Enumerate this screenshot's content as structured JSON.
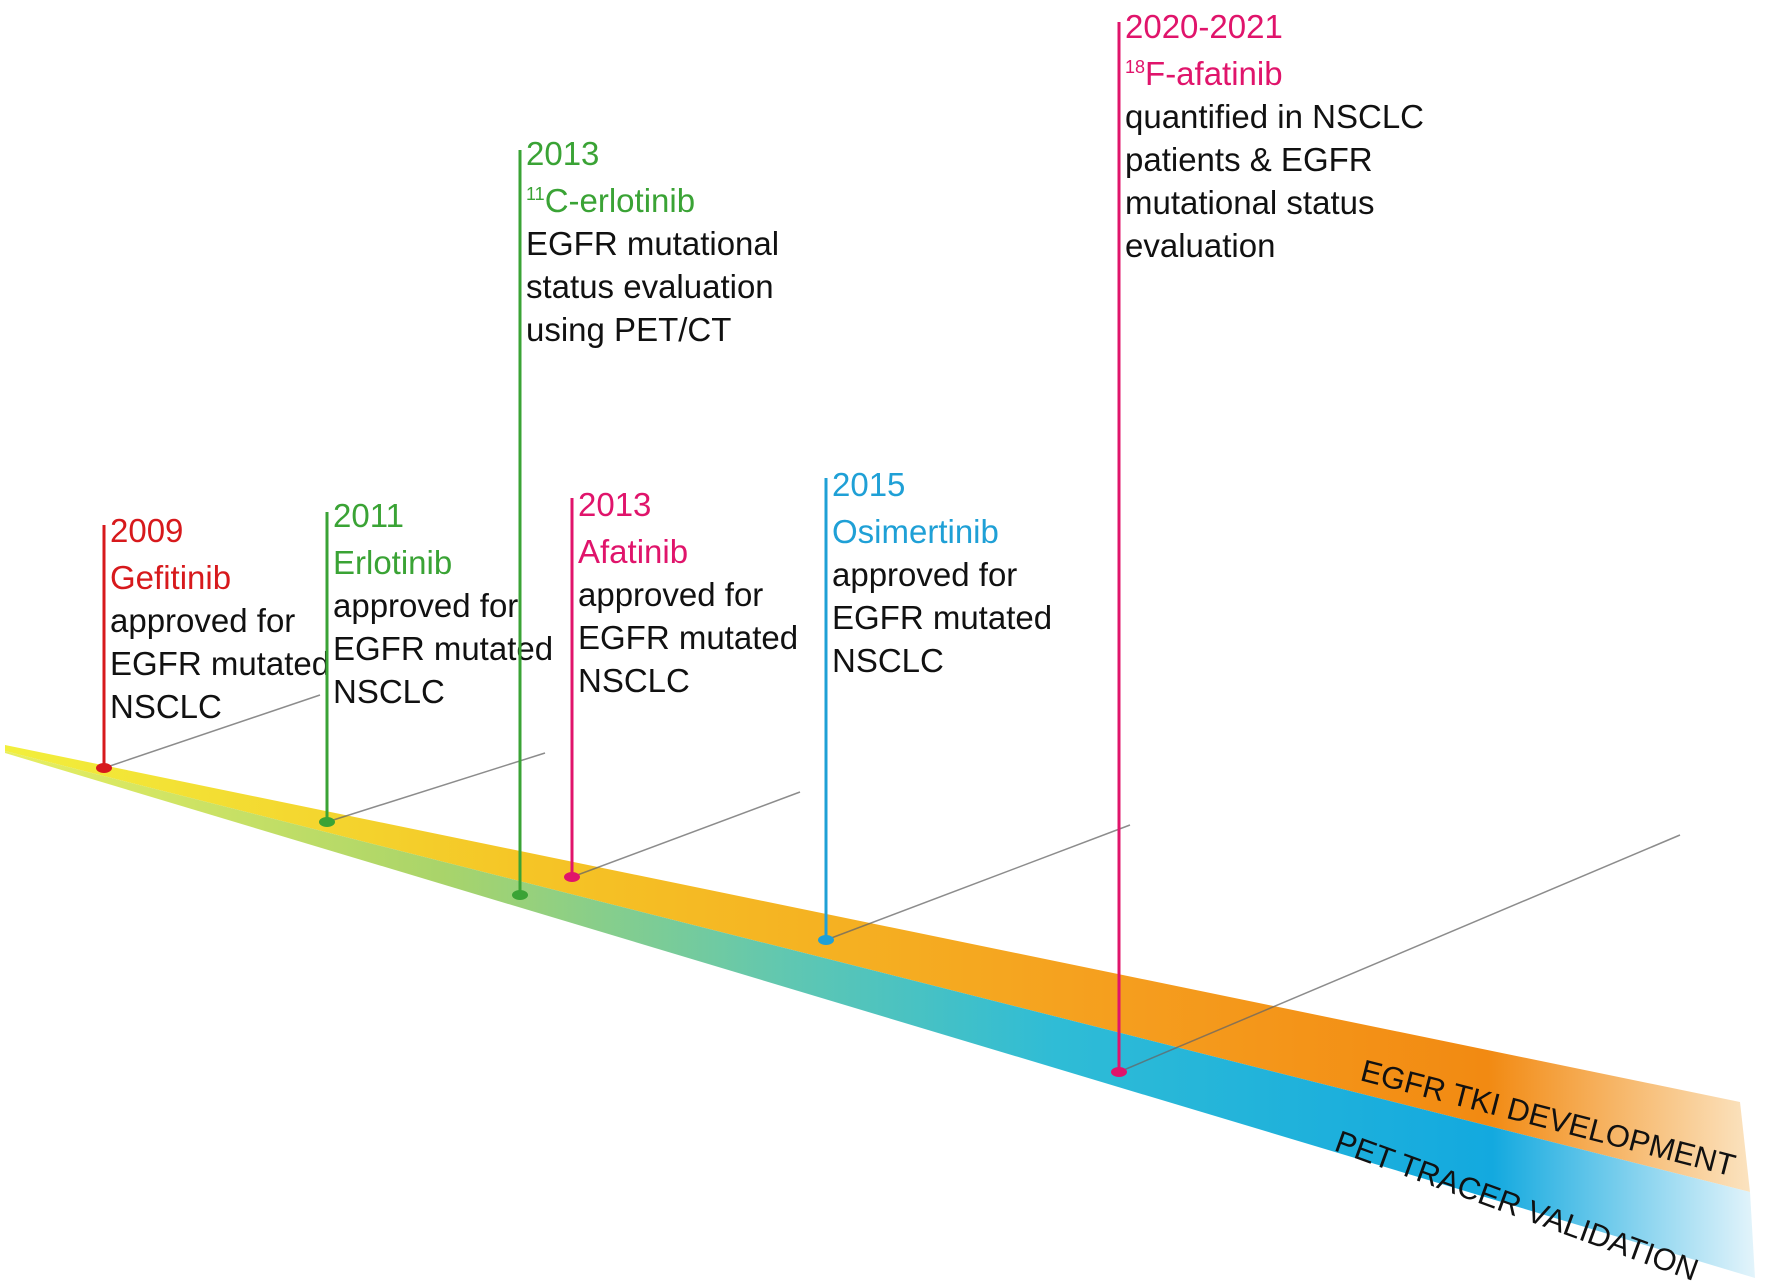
{
  "colors": {
    "gefitinib": "#d7191c",
    "erlotinib": "#3aa335",
    "afatinib": "#e0146b",
    "osimertinib": "#1fa0d6",
    "body_text": "#111111",
    "tki_band": "#f5a623",
    "pet_band": "#1aaee0",
    "connector": "#555555"
  },
  "bands": {
    "tki_label": "EGFR TKI DEVELOPMENT",
    "pet_label": "PET TRACER VALIDATION"
  },
  "events": [
    {
      "id": "gefitinib-2009",
      "year": "2009",
      "name": "Gefitinib",
      "lines": [
        "approved for",
        "EGFR mutated",
        "NSCLC"
      ],
      "color_key": "gefitinib"
    },
    {
      "id": "erlotinib-2011",
      "year": "2011",
      "name": "Erlotinib",
      "lines": [
        "approved for",
        "EGFR mutated",
        "NSCLC"
      ],
      "color_key": "erlotinib"
    },
    {
      "id": "c11-erlotinib-2013",
      "year": "2013",
      "name_sup": "11",
      "name": "C-erlotinib",
      "lines": [
        "EGFR mutational",
        "status evaluation",
        "using PET/CT"
      ],
      "color_key": "erlotinib"
    },
    {
      "id": "afatinib-2013",
      "year": "2013",
      "name": "Afatinib",
      "lines": [
        "approved for",
        "EGFR mutated",
        "NSCLC"
      ],
      "color_key": "afatinib"
    },
    {
      "id": "osimertinib-2015",
      "year": "2015",
      "name": "Osimertinib",
      "lines": [
        "approved for",
        "EGFR mutated",
        "NSCLC"
      ],
      "color_key": "osimertinib"
    },
    {
      "id": "f18-afatinib-2020-2021",
      "year": "2020-2021",
      "name_sup": "18",
      "name": "F-afatinib",
      "lines": [
        "quantified in NSCLC",
        "patients & EGFR",
        "mutational status",
        "evaluation"
      ],
      "color_key": "afatinib"
    }
  ]
}
